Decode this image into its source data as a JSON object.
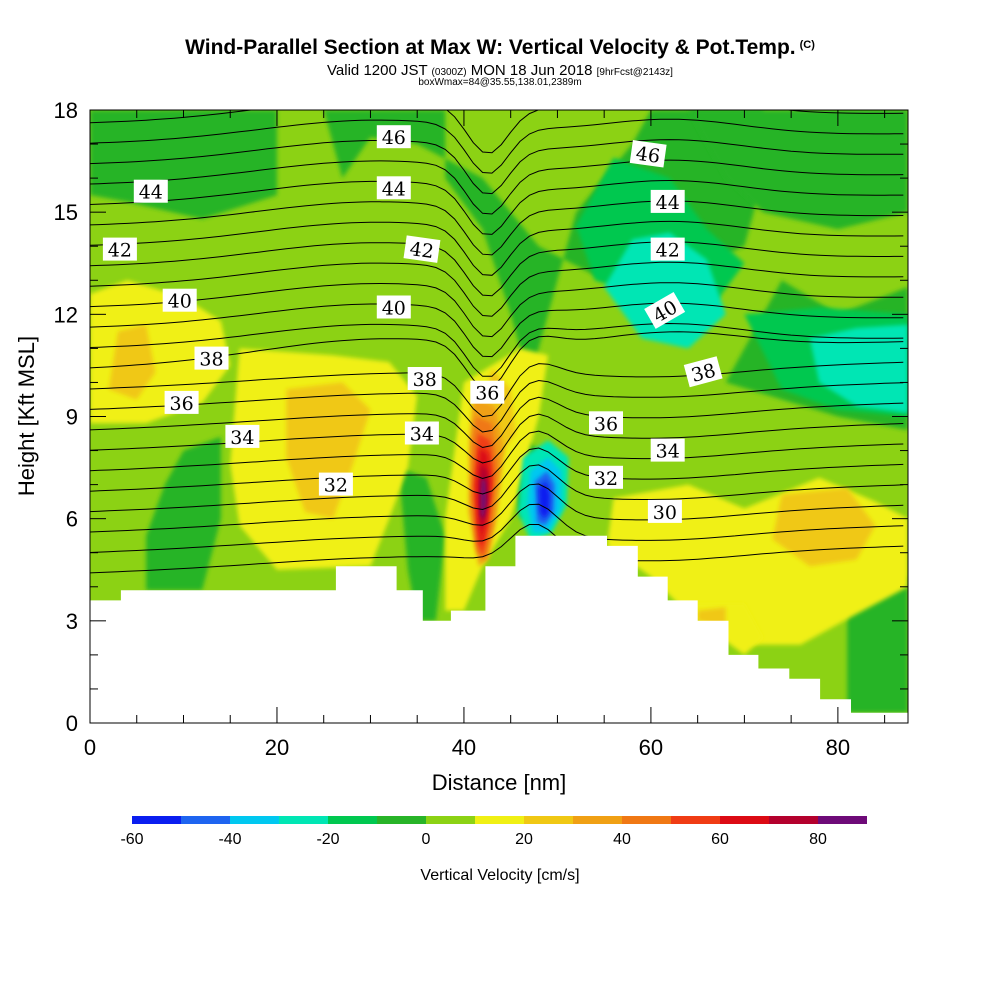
{
  "title": {
    "main": "Wind-Parallel Section at Max W: Vertical Velocity & Pot.Temp.",
    "copyright": "(C)",
    "valid_prefix": "Valid 1200 JST",
    "valid_utc": "(0300Z)",
    "valid_date": "MON 18 Jun 2018",
    "forecast": "[9hrFcst@2143z]",
    "box_info": "boxWmax=84@35.55,138.01,2389m"
  },
  "chart_data": {
    "type": "heatmap",
    "xlabel": "Distance [nm]",
    "ylabel": "Height [Kft MSL]",
    "xlim": [
      0,
      87.5
    ],
    "ylim": [
      0,
      18
    ],
    "x_ticks": [
      "0",
      "20",
      "40",
      "60",
      "80"
    ],
    "y_ticks": [
      "0",
      "3",
      "6",
      "9",
      "12",
      "15",
      "18"
    ],
    "colorbar": {
      "label": "Vertical Velocity [cm/s]",
      "ticks": [
        "-60",
        "-40",
        "-20",
        "0",
        "20",
        "40",
        "60",
        "80"
      ],
      "levels": [
        -60,
        -50,
        -40,
        -30,
        -20,
        -10,
        0,
        10,
        20,
        30,
        40,
        50,
        60,
        70,
        80,
        90
      ],
      "colors": [
        "#0a1ef0",
        "#1e64f0",
        "#00c8f0",
        "#00e6b4",
        "#00c850",
        "#28b428",
        "#8cd214",
        "#f0f014",
        "#f0c814",
        "#f0a014",
        "#f07814",
        "#f03c14",
        "#dc0a14",
        "#b4002d",
        "#6e0a78"
      ]
    },
    "terrain": {
      "description_units": "x in nm, height in Kft",
      "points": [
        [
          0,
          3.6
        ],
        [
          3.3,
          3.6
        ],
        [
          3.3,
          3.9
        ],
        [
          26.3,
          3.9
        ],
        [
          26.3,
          4.6
        ],
        [
          32.8,
          4.6
        ],
        [
          32.8,
          3.9
        ],
        [
          35.6,
          3.9
        ],
        [
          35.6,
          3.0
        ],
        [
          38.6,
          3.0
        ],
        [
          38.6,
          3.3
        ],
        [
          42.3,
          3.3
        ],
        [
          42.3,
          4.6
        ],
        [
          45.5,
          4.6
        ],
        [
          45.5,
          5.5
        ],
        [
          55.3,
          5.5
        ],
        [
          55.3,
          5.2
        ],
        [
          58.6,
          5.2
        ],
        [
          58.6,
          4.3
        ],
        [
          61.8,
          4.3
        ],
        [
          61.8,
          3.6
        ],
        [
          65.0,
          3.6
        ],
        [
          65.0,
          3.0
        ],
        [
          68.3,
          3.0
        ],
        [
          68.3,
          2.0
        ],
        [
          71.5,
          2.0
        ],
        [
          71.5,
          1.6
        ],
        [
          74.8,
          1.6
        ],
        [
          74.8,
          1.3
        ],
        [
          78.1,
          1.3
        ],
        [
          78.1,
          0.7
        ],
        [
          81.4,
          0.7
        ],
        [
          81.4,
          0.3
        ],
        [
          87.5,
          0.3
        ]
      ]
    },
    "isentrope_labels": [
      {
        "text": "46",
        "x": 32.5,
        "y": 17.2,
        "rot": 0
      },
      {
        "text": "44",
        "x": 6.5,
        "y": 15.6,
        "rot": 0
      },
      {
        "text": "44",
        "x": 32.5,
        "y": 15.7,
        "rot": 0
      },
      {
        "text": "42",
        "x": 3.2,
        "y": 13.9,
        "rot": 0
      },
      {
        "text": "42",
        "x": 35.5,
        "y": 13.9,
        "rot": 8
      },
      {
        "text": "40",
        "x": 9.6,
        "y": 12.4,
        "rot": 0
      },
      {
        "text": "40",
        "x": 32.5,
        "y": 12.2,
        "rot": 0
      },
      {
        "text": "38",
        "x": 13.0,
        "y": 10.7,
        "rot": 0
      },
      {
        "text": "38",
        "x": 35.8,
        "y": 10.1,
        "rot": 0
      },
      {
        "text": "36",
        "x": 9.8,
        "y": 9.4,
        "rot": 0
      },
      {
        "text": "36",
        "x": 42.5,
        "y": 9.7,
        "rot": 0
      },
      {
        "text": "34",
        "x": 16.3,
        "y": 8.4,
        "rot": 0
      },
      {
        "text": "34",
        "x": 35.5,
        "y": 8.5,
        "rot": 0
      },
      {
        "text": "32",
        "x": 26.3,
        "y": 7.0,
        "rot": 0
      },
      {
        "text": "46",
        "x": 59.7,
        "y": 16.7,
        "rot": 8
      },
      {
        "text": "44",
        "x": 61.8,
        "y": 15.3,
        "rot": 0
      },
      {
        "text": "42",
        "x": 61.8,
        "y": 13.9,
        "rot": 0
      },
      {
        "text": "40",
        "x": 61.5,
        "y": 12.1,
        "rot": -30
      },
      {
        "text": "38",
        "x": 65.6,
        "y": 10.3,
        "rot": -15
      },
      {
        "text": "36",
        "x": 55.2,
        "y": 8.8,
        "rot": 0
      },
      {
        "text": "34",
        "x": 61.8,
        "y": 8.0,
        "rot": 0
      },
      {
        "text": "32",
        "x": 55.2,
        "y": 7.2,
        "rot": 0
      },
      {
        "text": "30",
        "x": 61.5,
        "y": 6.2,
        "rot": 0
      }
    ],
    "isentrope_levels": [
      {
        "base": 4.4
      },
      {
        "base": 5.0
      },
      {
        "base": 5.6
      },
      {
        "base": 6.2
      },
      {
        "base": 6.8
      },
      {
        "base": 7.4
      },
      {
        "base": 8.0
      },
      {
        "base": 8.6
      },
      {
        "base": 9.2
      },
      {
        "base": 9.8
      },
      {
        "base": 10.4
      },
      {
        "base": 11.0
      },
      {
        "base": 11.6
      },
      {
        "base": 12.2
      },
      {
        "base": 12.8
      },
      {
        "base": 13.4
      },
      {
        "base": 14.0
      },
      {
        "base": 14.6
      },
      {
        "base": 15.2
      },
      {
        "base": 15.8
      },
      {
        "base": 16.4
      },
      {
        "base": 17.0
      },
      {
        "base": 17.6
      }
    ],
    "velocity_features": [
      {
        "kind": "updraft",
        "x": 42.0,
        "y": 6.8,
        "peak": 84
      },
      {
        "kind": "downdraft",
        "x": 48.5,
        "y": 6.6,
        "peak": -55
      },
      {
        "kind": "downdraft-region",
        "x": 63.0,
        "y": 12.3,
        "peak": -25
      },
      {
        "kind": "downdraft-region",
        "x": 84.0,
        "y": 10.3,
        "peak": -25
      },
      {
        "kind": "updraft-region",
        "x": 4.5,
        "y": 10.8,
        "peak": 25
      },
      {
        "kind": "updraft-region",
        "x": 25.0,
        "y": 8.0,
        "peak": 22
      },
      {
        "kind": "updraft-region",
        "x": 76.0,
        "y": 5.8,
        "peak": 18
      }
    ]
  }
}
